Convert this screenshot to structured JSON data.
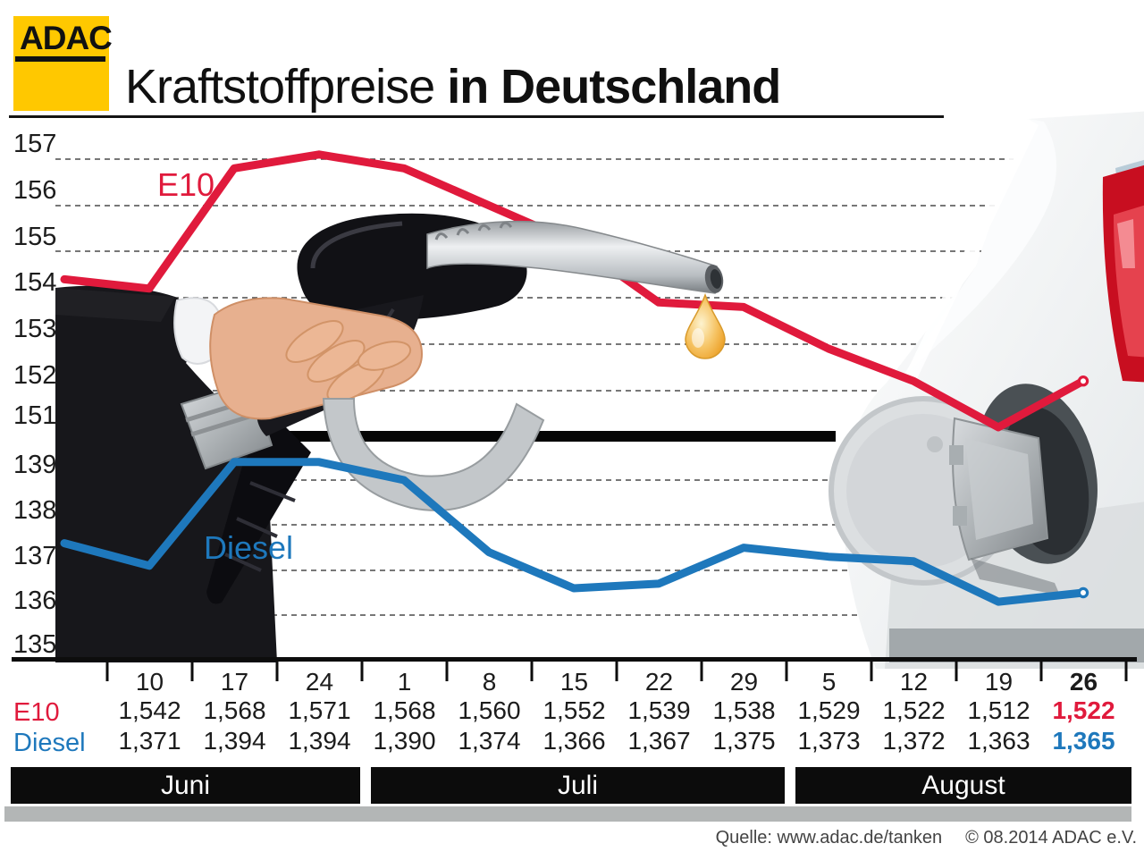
{
  "header": {
    "logo_text": "ADAC",
    "title_regular": "Kraftstoffpreise ",
    "title_bold": "in Deutschland"
  },
  "chart_data": {
    "type": "line",
    "title": "Kraftstoffpreise in Deutschland",
    "x_tick_labels": [
      "10",
      "17",
      "24",
      "1",
      "8",
      "15",
      "22",
      "29",
      "5",
      "12",
      "19",
      "26"
    ],
    "month_groups": [
      "Juni",
      "Juli",
      "August"
    ],
    "y_axis": {
      "top_section_labels": [
        "157",
        "156",
        "155",
        "154",
        "153",
        "152",
        "151"
      ],
      "bottom_section_labels": [
        "139",
        "138",
        "137",
        "136",
        "135"
      ],
      "axis_break_between": [
        151,
        139
      ],
      "grid": "dashed horizontal lines"
    },
    "legend_position": "inline labels on lines",
    "series": [
      {
        "name": "E10",
        "color": "#e01a3c",
        "scale": "top",
        "lead_in": 154.4,
        "values": [
          154.2,
          156.8,
          157.1,
          156.8,
          156.0,
          155.2,
          153.9,
          153.8,
          152.9,
          152.2,
          151.2,
          152.2
        ]
      },
      {
        "name": "Diesel",
        "color": "#1e78bc",
        "scale": "bottom",
        "lead_in": 137.6,
        "values": [
          137.1,
          139.4,
          139.4,
          139.0,
          137.4,
          136.6,
          136.7,
          137.5,
          137.3,
          137.2,
          136.3,
          136.5
        ]
      }
    ]
  },
  "table": {
    "dates": [
      "10",
      "17",
      "24",
      "1",
      "8",
      "15",
      "22",
      "29",
      "5",
      "12",
      "19",
      "26"
    ],
    "rows": [
      {
        "label": "E10",
        "values": [
          "1,542",
          "1,568",
          "1,571",
          "1,568",
          "1,560",
          "1,552",
          "1,539",
          "1,538",
          "1,529",
          "1,522",
          "1,512",
          "1,522"
        ]
      },
      {
        "label": "Diesel",
        "values": [
          "1,371",
          "1,394",
          "1,394",
          "1,390",
          "1,374",
          "1,366",
          "1,367",
          "1,375",
          "1,373",
          "1,372",
          "1,363",
          "1,365"
        ]
      }
    ]
  },
  "months": {
    "juni": "Juni",
    "juli": "Juli",
    "august": "August"
  },
  "source": {
    "quelle": "Quelle: www.adac.de/tanken",
    "copyright": "© 08.2014  ADAC e.V."
  },
  "colors": {
    "e10_red": "#e01a3c",
    "diesel_blue": "#1e78bc",
    "adac_yellow": "#ffc800",
    "month_bar_black": "#0c0c0c",
    "gray_bar": "#b3b6b6",
    "grid_gray": "#4a4a4a",
    "drop_orange": "#f2a93b"
  }
}
